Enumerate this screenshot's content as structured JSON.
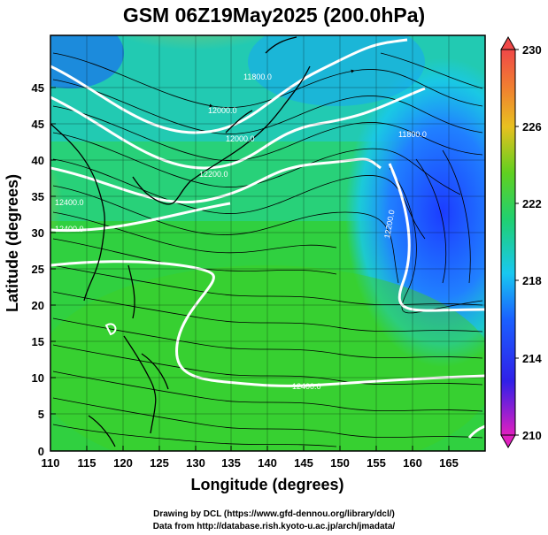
{
  "title": "GSM 06Z19May2025 (200.0hPa)",
  "x_axis": {
    "label": "Longitude (degrees)",
    "ticks": [
      "110",
      "115",
      "120",
      "125",
      "130",
      "135",
      "140",
      "145",
      "150",
      "155",
      "160",
      "165"
    ]
  },
  "y_axis": {
    "label": "Latitude (degrees)",
    "ticks": [
      "0",
      "5",
      "10",
      "15",
      "20",
      "25",
      "30",
      "35",
      "40",
      "45"
    ]
  },
  "colorbar": {
    "labels": [
      "230",
      "226",
      "222",
      "218",
      "214",
      "210"
    ],
    "min": 210,
    "max": 230
  },
  "contour_labels": [
    "12400.0",
    "12400.0",
    "12200.0",
    "12000.0",
    "12000.0",
    "11800.0",
    "11800.0",
    "12200.0",
    "12400.0"
  ],
  "credits": [
    "Drawing by DCL (https://www.gfd-dennou.org/library/dcl/)",
    "Data from http://database.rish.kyoto-u.ac.jp/arch/jmadata/"
  ],
  "chart_data": {
    "type": "heatmap",
    "title": "GSM 06Z19May2025 (200.0hPa)",
    "xlabel": "Longitude (degrees)",
    "ylabel": "Latitude (degrees)",
    "xlim": [
      110,
      170
    ],
    "ylim": [
      0,
      50
    ],
    "colorbar_range": [
      210,
      230
    ],
    "colormap": [
      "#e020c0",
      "#1a1aff",
      "#18d0ff",
      "#28d050",
      "#e8c020",
      "#f04848"
    ]
  }
}
